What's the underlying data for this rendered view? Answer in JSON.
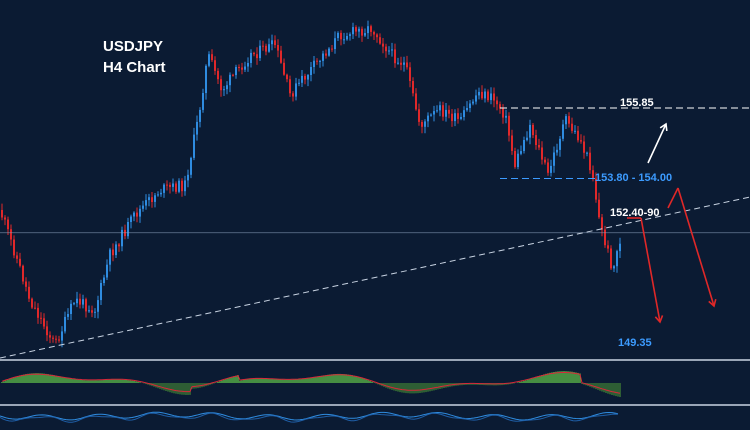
{
  "chart_data": {
    "type": "candlestick",
    "title_line1": "USDJPY",
    "title_line2": "H4 Chart",
    "symbol": "USDJPY",
    "timeframe": "H4",
    "colors": {
      "background": "#0b1b33",
      "bull": "#2f8ce0",
      "bear": "#e0282a",
      "annotation_arrow_up": "#ffffff",
      "annotation_arrow_down": "#e02828",
      "histogram_positive": "#5fbf4a",
      "signal_line": "#d8283a"
    },
    "price_levels": [
      {
        "label": "155.85",
        "value": 155.85,
        "style": "dashed",
        "color": "#ffffff"
      },
      {
        "label": "153.80 - 154.00",
        "value": 153.9,
        "style": "dashed",
        "color": "#3c9bff"
      },
      {
        "label": "152.40-90",
        "value": 152.65,
        "style": "text",
        "color": "#ffffff"
      },
      {
        "label": "149.35",
        "value": 149.35,
        "style": "text",
        "color": "#3c9bff"
      }
    ],
    "current_price_line": 152.4,
    "trendline": "ascending dashed support from lower-left to upper-right",
    "scenarios": [
      {
        "name": "bullish",
        "from": 153.9,
        "to": 155.85
      },
      {
        "name": "bearish from 152.40-90",
        "from": 152.65,
        "to": 149.35
      },
      {
        "name": "bearish from 153.80-154.00",
        "from": 153.9,
        "to": 149.35
      }
    ],
    "indicators": [
      "histogram oscillator with signal line",
      "line oscillator"
    ],
    "grid": false,
    "legend": "none"
  }
}
